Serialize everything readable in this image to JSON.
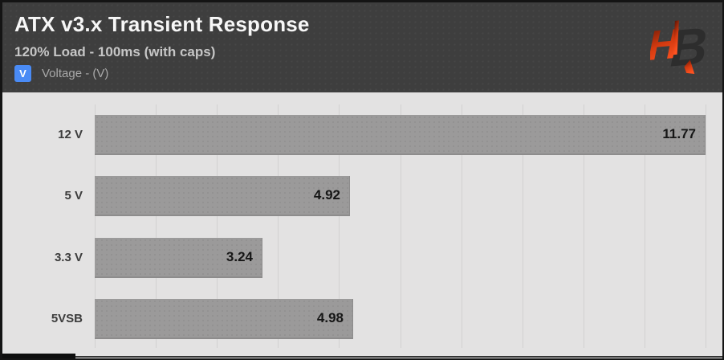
{
  "header": {
    "title": "ATX v3.x Transient Response",
    "subtitle": "120% Load - 100ms (with caps)",
    "legend": {
      "symbol": "V",
      "label": "Voltage - (V)",
      "symbol_bg": "#4a8bf5"
    },
    "logo_name": "hardware-busters-logo"
  },
  "chart_data": {
    "type": "bar",
    "orientation": "horizontal",
    "title": "ATX v3.x Transient Response",
    "subtitle": "120% Load - 100ms (with caps)",
    "legend_entries": [
      "Voltage - (V)"
    ],
    "legend_position": "top-left",
    "categories": [
      "12 V",
      "5 V",
      "3.3 V",
      "5VSB"
    ],
    "values": [
      11.77,
      4.92,
      3.24,
      4.98
    ],
    "value_labels": [
      "11.77",
      "4.92",
      "3.24",
      "4.98"
    ],
    "xlabel": "",
    "ylabel": "",
    "xlim": [
      0,
      11.77
    ],
    "grid": true,
    "gridline_count": 11,
    "bar_color": "#9b9a9a",
    "plot_background": "#e3e2e2",
    "header_background": "#3e3e3e",
    "value_label_color": "#161616"
  }
}
